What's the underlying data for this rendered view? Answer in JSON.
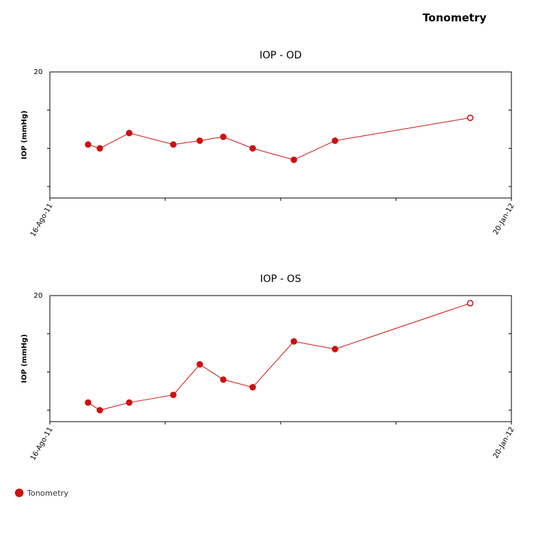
{
  "title": "Tonometry",
  "chart_data": [
    {
      "type": "line",
      "title": "IOP - OD",
      "y_label": "IOP (mmHg)",
      "x": [
        "2011-08-29",
        "2011-09-02",
        "2011-09-12",
        "2011-09-27",
        "2011-10-06",
        "2011-10-14",
        "2011-10-24",
        "2011-11-07",
        "2011-11-21",
        "2012-01-06"
      ],
      "series": [
        {
          "name": "Tonometry",
          "color": "#cc1111",
          "values": [
            16.2,
            16.0,
            16.8,
            16.2,
            16.4,
            16.6,
            16.0,
            15.4,
            16.4,
            17.6
          ]
        }
      ],
      "xlim": [
        {
          "value": "2011-08-16",
          "label": "16-Ago-11"
        },
        {
          "value": "2012-01-20",
          "label": "20-Jan-12"
        }
      ],
      "ylim": [
        13.4,
        20
      ],
      "yticks": [
        20
      ],
      "minor_yticks": [
        14,
        16,
        18
      ]
    },
    {
      "type": "line",
      "title": "IOP - OS",
      "y_label": "IOP (mmHg)",
      "x": [
        "2011-08-29",
        "2011-09-02",
        "2011-09-12",
        "2011-09-27",
        "2011-10-06",
        "2011-10-14",
        "2011-10-24",
        "2011-11-07",
        "2011-11-21",
        "2012-01-06"
      ],
      "series": [
        {
          "name": "Tonometry",
          "color": "#cc1111",
          "values": [
            14.4,
            14.0,
            14.4,
            14.8,
            16.4,
            15.6,
            15.2,
            17.6,
            17.2,
            19.6
          ]
        }
      ],
      "xlim": [
        {
          "value": "2011-08-16",
          "label": "16-Ago-11"
        },
        {
          "value": "2012-01-20",
          "label": "20-Jan-12"
        }
      ],
      "ylim": [
        13.4,
        20
      ],
      "yticks": [
        20
      ],
      "minor_yticks": [
        14,
        16,
        18
      ]
    }
  ]
}
